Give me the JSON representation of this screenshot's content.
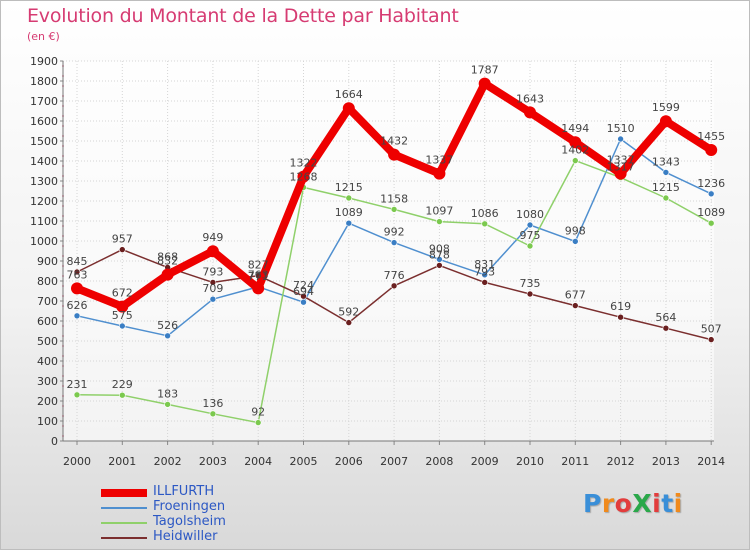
{
  "header": {
    "title": "Evolution du Montant de la Dette par Habitant",
    "subtitle": "(en €)"
  },
  "logo": {
    "text": "ProXiti",
    "letter_colors": [
      "#3a8fd8",
      "#f08a1c",
      "#e23c3c",
      "#2aa84a",
      "#e23c3c",
      "#3a8fd8",
      "#f08a1c"
    ]
  },
  "colors": {
    "title": "#d63b72",
    "axis_text": "#333333",
    "grid": "#d5d5d5"
  },
  "chart_data": {
    "type": "line",
    "x": [
      "2000",
      "2001",
      "2002",
      "2003",
      "2004",
      "2005",
      "2006",
      "2007",
      "2008",
      "2009",
      "2010",
      "2011",
      "2012",
      "2013",
      "2014"
    ],
    "ylim": [
      0,
      1900
    ],
    "yticks": [
      0,
      100,
      200,
      300,
      400,
      500,
      600,
      700,
      800,
      900,
      1000,
      1100,
      1200,
      1300,
      1400,
      1500,
      1600,
      1700,
      1800,
      1900
    ],
    "grid": true,
    "legend_position": "bottom-left",
    "series": [
      {
        "name": "ILLFURTH",
        "color": "#ee0000",
        "bold": true,
        "values": [
          763,
          672,
          832,
          949,
          763,
          1322,
          1664,
          1432,
          1337,
          1787,
          1643,
          1494,
          1337,
          1599,
          1455
        ],
        "labels": [
          "763",
          "672",
          "832",
          "949",
          "763",
          "1322",
          "1664",
          "1432",
          "1337",
          "1787",
          "1643",
          "1494",
          "1337",
          "1599",
          "1455"
        ]
      },
      {
        "name": "Froeningen",
        "color": "#4f8fcf",
        "marker": "#3a7ec4",
        "values": [
          626,
          575,
          526,
          709,
          771,
          694,
          1089,
          992,
          908,
          831,
          1080,
          998,
          1510,
          1343,
          1236
        ],
        "labels": [
          "626",
          "575",
          "526",
          "709",
          "771",
          "694",
          "1089",
          "992",
          "908",
          "831",
          "1080",
          "998",
          "1510",
          "1343",
          "1236"
        ]
      },
      {
        "name": "Tagolsheim",
        "color": "#8fd06a",
        "marker": "#7bc94e",
        "values": [
          231,
          229,
          183,
          136,
          92,
          1268,
          1215,
          1158,
          1097,
          1086,
          975,
          1402,
          1317,
          1215,
          1089
        ],
        "labels": [
          "231",
          "229",
          "183",
          "136",
          "92",
          "1268",
          "1215",
          "1158",
          "1097",
          "1086",
          "975",
          "1402",
          "1317",
          "1215",
          "1089"
        ]
      },
      {
        "name": "Heidwiller",
        "color": "#7b2f2f",
        "marker": "#6a1f1f",
        "values": [
          845,
          957,
          868,
          793,
          827,
          724,
          592,
          776,
          878,
          793,
          735,
          677,
          619,
          564,
          507
        ],
        "labels": [
          "845",
          "957",
          "868",
          "793",
          "827",
          "724",
          "592",
          "776",
          "878",
          "793",
          "735",
          "677",
          "619",
          "564",
          "507"
        ]
      }
    ]
  }
}
